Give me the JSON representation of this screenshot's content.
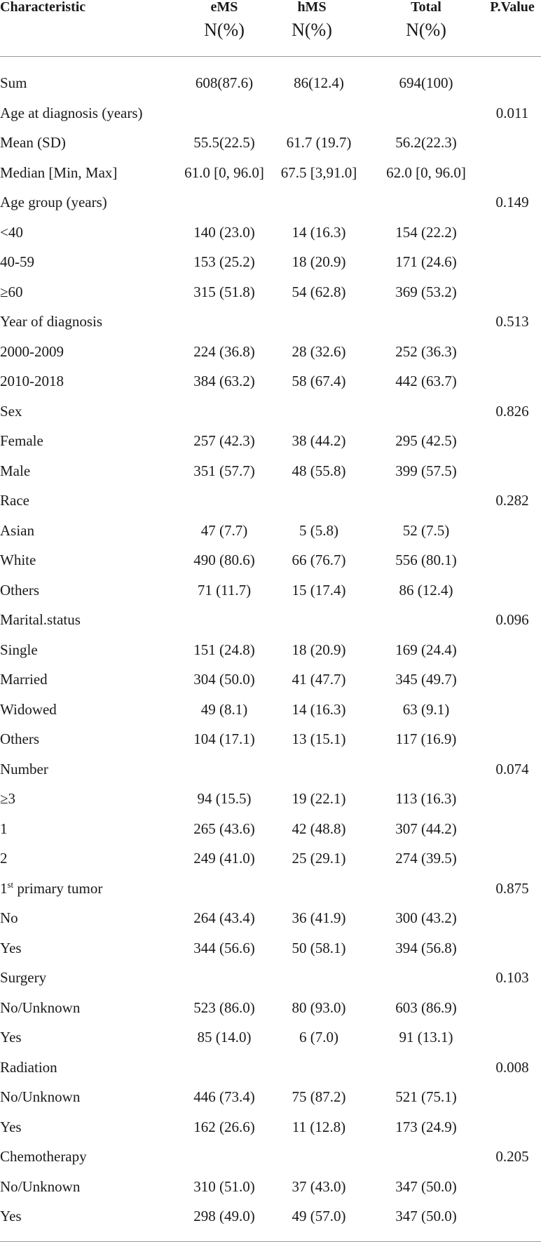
{
  "header": {
    "characteristic": "Characteristic",
    "ems": "eMS",
    "hms": "hMS",
    "total": "Total",
    "unit": "N(%)",
    "pvalue": "P.Value"
  },
  "rows": [
    {
      "label": "Sum",
      "ems": "608(87.6)",
      "hms": "86(12.4)",
      "total": "694(100)",
      "p": ""
    },
    {
      "label": "Age at diagnosis (years)",
      "ems": "",
      "hms": "",
      "total": "",
      "p": "0.011"
    },
    {
      "label": "Mean (SD)",
      "ems": "55.5(22.5)",
      "hms": "61.7 (19.7)",
      "total": "56.2(22.3)",
      "p": ""
    },
    {
      "label": "Median [Min, Max]",
      "ems": "61.0 [0, 96.0]",
      "hms": "67.5 [3,91.0]",
      "total": "62.0 [0, 96.0]",
      "p": ""
    },
    {
      "label": "Age group (years)",
      "ems": "",
      "hms": "",
      "total": "",
      "p": "0.149"
    },
    {
      "label": "<40",
      "ems": "140 (23.0)",
      "hms": "14 (16.3)",
      "total": "154 (22.2)",
      "p": ""
    },
    {
      "label": "40-59",
      "ems": "153 (25.2)",
      "hms": "18 (20.9)",
      "total": "171 (24.6)",
      "p": ""
    },
    {
      "label": "≥60",
      "ems": "315 (51.8)",
      "hms": "54 (62.8)",
      "total": "369 (53.2)",
      "p": ""
    },
    {
      "label": "Year of diagnosis",
      "ems": "",
      "hms": "",
      "total": "",
      "p": "0.513"
    },
    {
      "label": "2000-2009",
      "ems": "224 (36.8)",
      "hms": "28 (32.6)",
      "total": "252 (36.3)",
      "p": ""
    },
    {
      "label": "2010-2018",
      "ems": "384 (63.2)",
      "hms": "58 (67.4)",
      "total": "442 (63.7)",
      "p": ""
    },
    {
      "label": "Sex",
      "ems": "",
      "hms": "",
      "total": "",
      "p": "0.826"
    },
    {
      "label": "Female",
      "ems": "257 (42.3)",
      "hms": "38 (44.2)",
      "total": "295 (42.5)",
      "p": ""
    },
    {
      "label": "Male",
      "ems": "351 (57.7)",
      "hms": "48 (55.8)",
      "total": "399 (57.5)",
      "p": ""
    },
    {
      "label": "Race",
      "ems": "",
      "hms": "",
      "total": "",
      "p": "0.282"
    },
    {
      "label": "Asian",
      "ems": "47 (7.7)",
      "hms": "5 (5.8)",
      "total": "52 (7.5)",
      "p": ""
    },
    {
      "label": "White",
      "ems": "490 (80.6)",
      "hms": "66 (76.7)",
      "total": "556 (80.1)",
      "p": ""
    },
    {
      "label": "Others",
      "ems": "71 (11.7)",
      "hms": "15 (17.4)",
      "total": "86 (12.4)",
      "p": ""
    },
    {
      "label": "Marital.status",
      "ems": "",
      "hms": "",
      "total": "",
      "p": "0.096"
    },
    {
      "label": "Single",
      "ems": "151 (24.8)",
      "hms": "18 (20.9)",
      "total": "169 (24.4)",
      "p": ""
    },
    {
      "label": "Married",
      "ems": "304 (50.0)",
      "hms": "41 (47.7)",
      "total": "345 (49.7)",
      "p": ""
    },
    {
      "label": "Widowed",
      "ems": "49 (8.1)",
      "hms": "14 (16.3)",
      "total": "63 (9.1)",
      "p": ""
    },
    {
      "label": "Others",
      "ems": "104 (17.1)",
      "hms": "13 (15.1)",
      "total": "117 (16.9)",
      "p": ""
    },
    {
      "label": "Number",
      "ems": "",
      "hms": "",
      "total": "",
      "p": "0.074"
    },
    {
      "label": "≥3",
      "ems": "94 (15.5)",
      "hms": "19 (22.1)",
      "total": "113 (16.3)",
      "p": ""
    },
    {
      "label": "1",
      "ems": "265 (43.6)",
      "hms": "42 (48.8)",
      "total": "307 (44.2)",
      "p": ""
    },
    {
      "label": "2",
      "ems": "249 (41.0)",
      "hms": "25 (29.1)",
      "total": "274 (39.5)",
      "p": ""
    },
    {
      "label": "1",
      "label_sup": "st",
      "label_rest": " primary tumor",
      "ems": "",
      "hms": "",
      "total": "",
      "p": "0.875"
    },
    {
      "label": "No",
      "ems": "264 (43.4)",
      "hms": "36 (41.9)",
      "total": "300 (43.2)",
      "p": ""
    },
    {
      "label": "Yes",
      "ems": "344 (56.6)",
      "hms": "50 (58.1)",
      "total": "394 (56.8)",
      "p": ""
    },
    {
      "label": "Surgery",
      "ems": "",
      "hms": "",
      "total": "",
      "p": "0.103"
    },
    {
      "label": "No/Unknown",
      "ems": "523 (86.0)",
      "hms": "80 (93.0)",
      "total": "603 (86.9)",
      "p": ""
    },
    {
      "label": "Yes",
      "ems": "85 (14.0)",
      "hms": "6 (7.0)",
      "total": "91 (13.1)",
      "p": ""
    },
    {
      "label": "Radiation",
      "ems": "",
      "hms": "",
      "total": "",
      "p": "0.008"
    },
    {
      "label": "No/Unknown",
      "ems": "446 (73.4)",
      "hms": "75 (87.2)",
      "total": "521 (75.1)",
      "p": ""
    },
    {
      "label": "Yes",
      "ems": "162 (26.6)",
      "hms": "11 (12.8)",
      "total": "173 (24.9)",
      "p": ""
    },
    {
      "label": "Chemotherapy",
      "ems": "",
      "hms": "",
      "total": "",
      "p": "0.205"
    },
    {
      "label": "No/Unknown",
      "ems": "310 (51.0)",
      "hms": "37 (43.0)",
      "total": "347 (50.0)",
      "p": ""
    },
    {
      "label": "Yes",
      "ems": "298 (49.0)",
      "hms": "49 (57.0)",
      "total": "347 (50.0)",
      "p": ""
    }
  ]
}
